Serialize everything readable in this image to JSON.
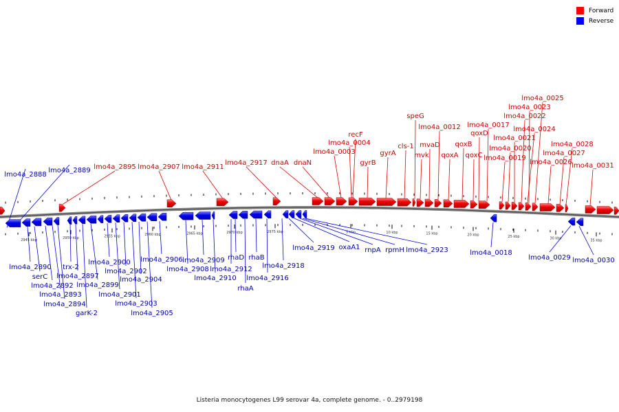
{
  "legend": {
    "forward": {
      "label": "Forward",
      "color": "#ff0000"
    },
    "reverse": {
      "label": "Reverse",
      "color": "#0000ff"
    }
  },
  "caption": "Listeria monocytogenes L99 serovar 4a, complete genome. - 0..2979198",
  "forward_labels": [
    "lmo4a_2895",
    "lmo4a_2907",
    "lmo4a_2911",
    "lmo4a_2917",
    "dnaA",
    "dnaN",
    "lmo4a_0003",
    "lmo4a_0004",
    "recF",
    "gyrB",
    "gyrA",
    "cls-1",
    "speG",
    "mvk",
    "mvaD",
    "lmo4a_0012",
    "qoxA",
    "qoxB",
    "qoxC",
    "qoxD",
    "lmo4a_0017",
    "lmo4a_0019",
    "lmo4a_0020",
    "lmo4a_0021",
    "lmo4a_0024",
    "lmo4a_0022",
    "lmo4a_0023",
    "lmo4a_0025",
    "lmo4a_0026",
    "lmo4a_0027",
    "lmo4a_0028",
    "lmo4a_0031"
  ],
  "reverse_labels": [
    "lmo4a_2888",
    "lmo4a_2889",
    "lmo4a_2890",
    "serC",
    "lmo4a_2892",
    "lmo4a_2893",
    "lmo4a_2894",
    "trx-2",
    "lmo4a_2897",
    "garK-2",
    "lmo4a_2899",
    "lmo4a_2900",
    "lmo4a_2901",
    "lmo4a_2902",
    "lmo4a_2903",
    "lmo4a_2904",
    "lmo4a_2905",
    "lmo4a_2906",
    "lmo4a_2908",
    "lmo4a_2909",
    "lmo4a_2910",
    "lmo4a_2912",
    "rhaD",
    "rhaA",
    "rhaB",
    "lmo4a_2916",
    "lmo4a_2918",
    "lmo4a_2919",
    "oxaA1",
    "rnpA",
    "rpmH",
    "lmo4a_2923",
    "lmo4a_0018",
    "lmo4a_0029",
    "lmo4a_0030"
  ],
  "ticks": [
    "2945 kbp",
    "2950 kbp",
    "2955 kbp",
    "2960 kbp",
    "2965 kbp",
    "2970 kbp",
    "2975 kbp",
    "5 kbp",
    "10 kbp",
    "15 kbp",
    "20 kbp",
    "25 kbp",
    "30 kbp",
    "35 kbp"
  ]
}
